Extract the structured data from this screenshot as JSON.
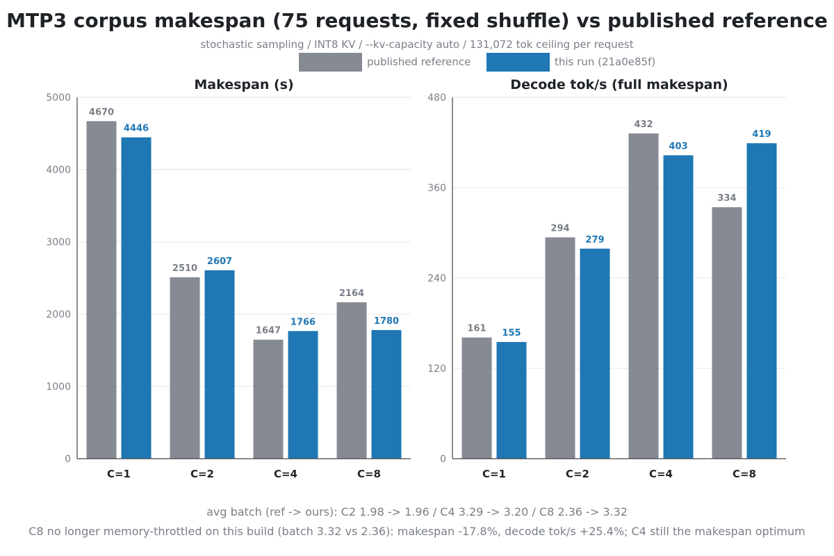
{
  "title": "MTP3 corpus makespan (75 requests, fixed shuffle) vs published reference",
  "subtitle": "stochastic sampling / INT8 KV / --kv-capacity auto / 131,072 tok ceiling per request",
  "legend": {
    "reference": {
      "label": "published reference",
      "color": "#868b93"
    },
    "run": {
      "label": "this run (21a0e85f)",
      "color": "#1f77b4"
    }
  },
  "colors": {
    "reference_label": "#7a7f87",
    "run_label": "#1f77b4",
    "axis": "#444444",
    "grid": "#e6e6e6",
    "tick": "#7a7f87"
  },
  "chart_data": [
    {
      "type": "bar",
      "title": "Makespan (s)",
      "categories": [
        "C=1",
        "C=2",
        "C=4",
        "C=8"
      ],
      "series": [
        {
          "name": "published reference",
          "values": [
            4670,
            2510,
            1647,
            2164
          ]
        },
        {
          "name": "this run (21a0e85f)",
          "values": [
            4446,
            2607,
            1766,
            1780
          ]
        }
      ],
      "ylim": [
        0,
        5000
      ],
      "yticks": [
        0,
        1000,
        2000,
        3000,
        4000,
        5000
      ],
      "grid": true
    },
    {
      "type": "bar",
      "title": "Decode tok/s (full makespan)",
      "categories": [
        "C=1",
        "C=2",
        "C=4",
        "C=8"
      ],
      "series": [
        {
          "name": "published reference",
          "values": [
            161,
            294,
            432,
            334
          ]
        },
        {
          "name": "this run (21a0e85f)",
          "values": [
            155,
            279,
            403,
            419
          ]
        }
      ],
      "ylim": [
        0,
        480
      ],
      "yticks": [
        0,
        120,
        240,
        360,
        480
      ],
      "grid": true
    }
  ],
  "footnotes": [
    "avg batch (ref -> ours): C2 1.98 -> 1.96  /  C4 3.29 -> 3.20  /  C8 2.36 -> 3.32",
    "C8 no longer memory-throttled on this build (batch 3.32 vs 2.36): makespan -17.8%, decode tok/s +25.4%; C4 still the makespan optimum"
  ]
}
